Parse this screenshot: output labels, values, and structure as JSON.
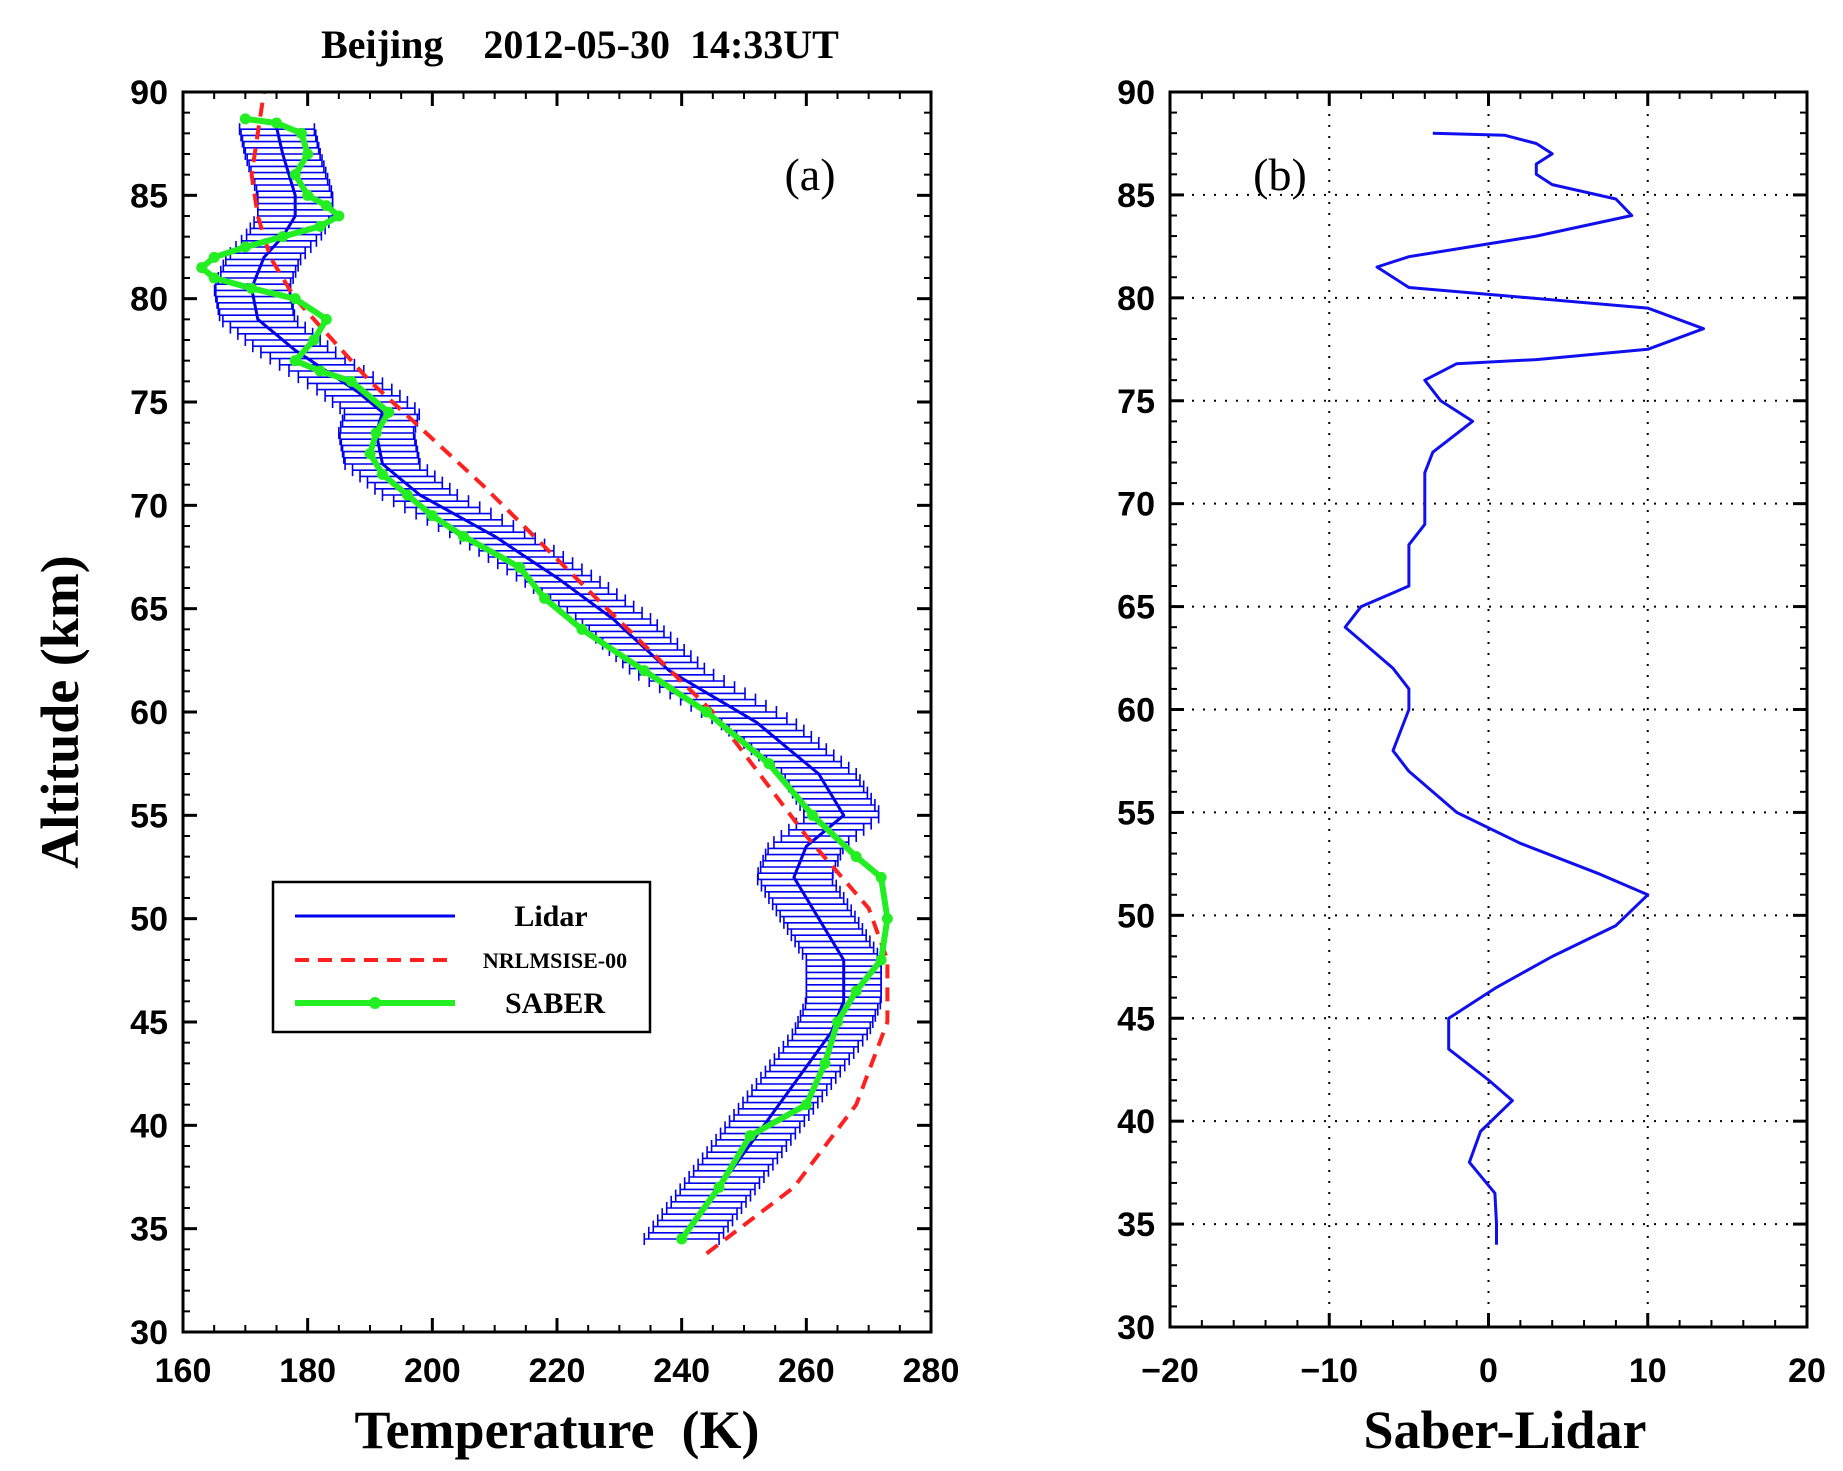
{
  "chart_data": [
    {
      "panel": "(a)",
      "type": "line",
      "title": "Beijing    2012-05-30  14:33UT",
      "xlabel": "Temperature  (K)",
      "ylabel": "Altitude (km)",
      "xlim": [
        160,
        280
      ],
      "ylim": [
        30,
        90
      ],
      "xticks": [
        "160",
        "180",
        "200",
        "220",
        "240",
        "260",
        "280"
      ],
      "yticks": [
        "30",
        "35",
        "40",
        "45",
        "50",
        "55",
        "60",
        "65",
        "70",
        "75",
        "80",
        "85",
        "90"
      ],
      "legend": {
        "placement": "center-left",
        "entries": [
          "Lidar",
          "NRLMSISE-00",
          "SABER"
        ]
      },
      "series": [
        {
          "name": "Lidar",
          "color": "#0000ee",
          "style": "solid-with-errorbars",
          "error_k": 6,
          "points": [
            [
              240,
              34.5
            ],
            [
              246,
              37
            ],
            [
              252,
              39.5
            ],
            [
              258,
              42
            ],
            [
              264,
              44.5
            ],
            [
              266,
              46
            ],
            [
              266,
              48
            ],
            [
              262,
              50
            ],
            [
              258,
              52
            ],
            [
              260,
              53.5
            ],
            [
              266,
              55
            ],
            [
              262,
              57
            ],
            [
              252,
              59.5
            ],
            [
              238,
              62
            ],
            [
              229,
              64.5
            ],
            [
              220,
              66.5
            ],
            [
              210,
              68.5
            ],
            [
              198,
              70.5
            ],
            [
              192,
              72
            ],
            [
              191,
              73.5
            ],
            [
              192,
              74.5
            ],
            [
              188,
              75.5
            ],
            [
              183,
              76.5
            ],
            [
              178,
              77.5
            ],
            [
              172,
              79
            ],
            [
              171,
              80.5
            ],
            [
              173,
              82
            ],
            [
              176,
              83
            ],
            [
              178,
              84
            ],
            [
              178,
              85
            ],
            [
              177,
              86
            ],
            [
              176,
              87
            ],
            [
              175,
              88.3
            ]
          ]
        },
        {
          "name": "NRLMSISE-00",
          "color": "#ff2020",
          "style": "dashed",
          "points": [
            [
              244,
              33.8
            ],
            [
              258,
              37
            ],
            [
              268,
              41
            ],
            [
              273,
              45
            ],
            [
              273,
              48
            ],
            [
              270,
              50.5
            ],
            [
              260,
              54
            ],
            [
              245,
              60
            ],
            [
              228,
              65
            ],
            [
              208,
              71
            ],
            [
              190,
              76
            ],
            [
              178,
              80
            ],
            [
              174,
              82
            ],
            [
              172,
              84
            ],
            [
              171,
              86
            ],
            [
              172,
              88
            ],
            [
              173,
              90
            ]
          ]
        },
        {
          "name": "SABER",
          "color": "#22ee22",
          "style": "solid-with-markers",
          "points": [
            [
              240,
              34.5
            ],
            [
              246,
              37
            ],
            [
              251,
              39.5
            ],
            [
              260,
              41
            ],
            [
              263,
              43
            ],
            [
              265,
              45
            ],
            [
              268,
              46.5
            ],
            [
              272,
              48
            ],
            [
              273,
              50
            ],
            [
              272,
              52
            ],
            [
              268,
              53
            ],
            [
              261,
              55
            ],
            [
              254,
              57.5
            ],
            [
              244,
              60
            ],
            [
              234,
              62
            ],
            [
              224,
              64
            ],
            [
              218,
              65.5
            ],
            [
              214,
              67
            ],
            [
              205,
              68.5
            ],
            [
              200,
              69.5
            ],
            [
              196,
              70.5
            ],
            [
              192,
              71.5
            ],
            [
              190,
              72.5
            ],
            [
              191,
              73.5
            ],
            [
              193,
              74.5
            ],
            [
              187,
              76
            ],
            [
              182,
              76.5
            ],
            [
              178,
              77
            ],
            [
              181,
              78
            ],
            [
              183,
              79
            ],
            [
              178,
              80
            ],
            [
              171,
              80.5
            ],
            [
              165,
              81
            ],
            [
              163,
              81.5
            ],
            [
              165,
              82
            ],
            [
              170,
              82.5
            ],
            [
              176,
              83
            ],
            [
              182,
              83.5
            ],
            [
              185,
              84
            ],
            [
              183,
              84.5
            ],
            [
              180,
              85
            ],
            [
              178,
              86
            ],
            [
              180,
              87
            ],
            [
              179,
              88
            ],
            [
              175,
              88.5
            ],
            [
              170,
              88.7
            ]
          ]
        }
      ]
    },
    {
      "panel": "(b)",
      "type": "line",
      "xlabel": "Saber-Lidar",
      "xlim": [
        -20,
        20
      ],
      "ylim": [
        30,
        90
      ],
      "xticks": [
        "−20",
        "−10",
        "0",
        "10",
        "20"
      ],
      "yticks": [
        "30",
        "35",
        "40",
        "45",
        "50",
        "55",
        "60",
        "65",
        "70",
        "75",
        "80",
        "85",
        "90"
      ],
      "grid": true,
      "series": [
        {
          "name": "Saber-Lidar",
          "color": "#1010ee",
          "points": [
            [
              0.5,
              34
            ],
            [
              0.5,
              35
            ],
            [
              0.4,
              36.5
            ],
            [
              -1.2,
              38
            ],
            [
              -0.5,
              39.5
            ],
            [
              1.5,
              41
            ],
            [
              0,
              42
            ],
            [
              -2.5,
              43.5
            ],
            [
              -2.5,
              45
            ],
            [
              0.5,
              46.5
            ],
            [
              4,
              48
            ],
            [
              8,
              49.5
            ],
            [
              10,
              51
            ],
            [
              7,
              52
            ],
            [
              2,
              53.5
            ],
            [
              -2,
              55
            ],
            [
              -5,
              57
            ],
            [
              -6,
              58
            ],
            [
              -5,
              60
            ],
            [
              -5,
              61
            ],
            [
              -6,
              62
            ],
            [
              -9,
              64
            ],
            [
              -8,
              65
            ],
            [
              -5,
              66
            ],
            [
              -5,
              67
            ],
            [
              -5,
              68
            ],
            [
              -4,
              69
            ],
            [
              -4,
              70
            ],
            [
              -4,
              71.5
            ],
            [
              -3.5,
              72.5
            ],
            [
              -1,
              74
            ],
            [
              -3,
              75
            ],
            [
              -4,
              76
            ],
            [
              -2,
              76.8
            ],
            [
              3,
              77
            ],
            [
              10,
              77.5
            ],
            [
              13.5,
              78.5
            ],
            [
              10,
              79.5
            ],
            [
              -5,
              80.5
            ],
            [
              -7,
              81.5
            ],
            [
              -5,
              82
            ],
            [
              3,
              83
            ],
            [
              9,
              84
            ],
            [
              8,
              84.8
            ],
            [
              4,
              85.5
            ],
            [
              3,
              86
            ],
            [
              3,
              86.5
            ],
            [
              4,
              87
            ],
            [
              3,
              87.5
            ],
            [
              1,
              87.9
            ],
            [
              -3.5,
              88
            ]
          ]
        }
      ]
    }
  ]
}
